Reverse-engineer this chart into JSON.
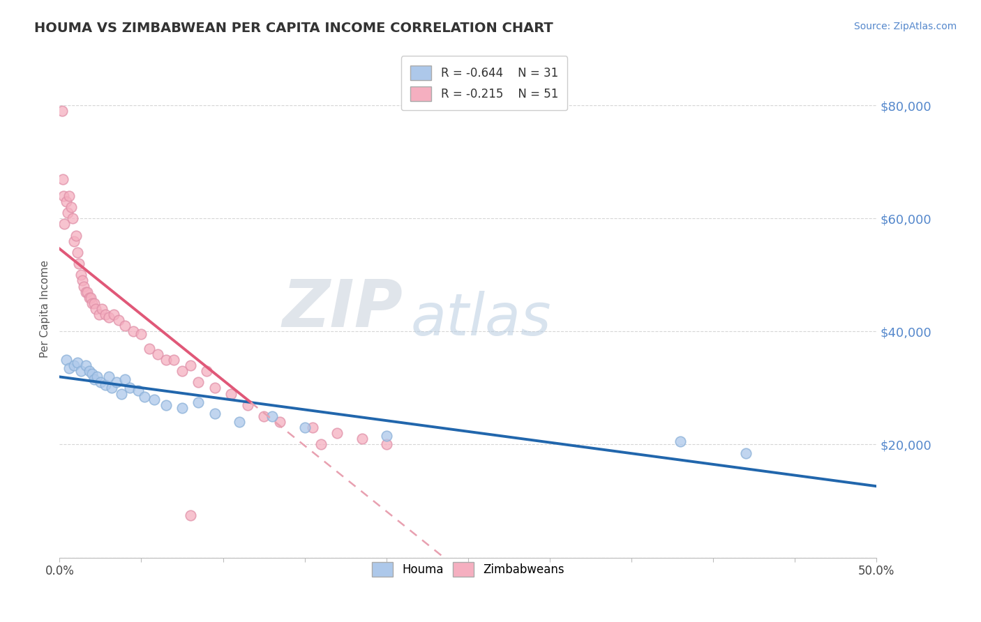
{
  "title": "HOUMA VS ZIMBABWEAN PER CAPITA INCOME CORRELATION CHART",
  "source_text": "Source: ZipAtlas.com",
  "ylabel": "Per Capita Income",
  "xlim": [
    0.0,
    50.0
  ],
  "ylim": [
    0,
    88000
  ],
  "yticks": [
    0,
    20000,
    40000,
    60000,
    80000
  ],
  "ytick_labels": [
    "",
    "$20,000",
    "$40,000",
    "$60,000",
    "$80,000"
  ],
  "legend_r1": "R = -0.644",
  "legend_n1": "N = 31",
  "legend_r2": "R = -0.215",
  "legend_n2": "N = 51",
  "houma_color": "#adc8ea",
  "houma_edge": "#8ab0d8",
  "zimbabwean_color": "#f5afc0",
  "zimbabwean_edge": "#e090a8",
  "trend_blue": "#2166ac",
  "trend_pink": "#e05878",
  "trend_pink_dash": "#e8a0b0",
  "watermark_zip": "#d0d8e8",
  "watermark_atlas": "#b8cce4",
  "houma_x": [
    0.4,
    0.6,
    0.9,
    1.1,
    1.3,
    1.6,
    1.8,
    2.0,
    2.1,
    2.3,
    2.5,
    2.8,
    3.0,
    3.2,
    3.5,
    3.8,
    4.0,
    4.3,
    4.8,
    5.2,
    5.8,
    6.5,
    7.5,
    8.5,
    9.5,
    11.0,
    13.0,
    15.0,
    20.0,
    38.0,
    42.0
  ],
  "houma_y": [
    35000,
    33500,
    34000,
    34500,
    33000,
    34000,
    33000,
    32500,
    31500,
    32000,
    31000,
    30500,
    32000,
    30000,
    31000,
    29000,
    31500,
    30000,
    29500,
    28500,
    28000,
    27000,
    26500,
    27500,
    25500,
    24000,
    25000,
    23000,
    21500,
    20500,
    18500
  ],
  "zimbabwean_x": [
    0.15,
    0.2,
    0.25,
    0.3,
    0.4,
    0.5,
    0.6,
    0.7,
    0.8,
    0.9,
    1.0,
    1.1,
    1.2,
    1.3,
    1.4,
    1.5,
    1.6,
    1.7,
    1.8,
    1.9,
    2.0,
    2.1,
    2.2,
    2.4,
    2.6,
    2.8,
    3.0,
    3.3,
    3.6,
    4.0,
    4.5,
    5.0,
    5.5,
    6.0,
    6.5,
    7.0,
    7.5,
    8.0,
    8.5,
    9.0,
    9.5,
    10.5,
    11.5,
    12.5,
    13.5,
    15.5,
    16.0,
    17.0,
    18.5,
    20.0,
    8.0
  ],
  "zimbabwean_y": [
    79000,
    67000,
    64000,
    59000,
    63000,
    61000,
    64000,
    62000,
    60000,
    56000,
    57000,
    54000,
    52000,
    50000,
    49000,
    48000,
    47000,
    47000,
    46000,
    46000,
    45000,
    45000,
    44000,
    43000,
    44000,
    43000,
    42500,
    43000,
    42000,
    41000,
    40000,
    39500,
    37000,
    36000,
    35000,
    35000,
    33000,
    34000,
    31000,
    33000,
    30000,
    29000,
    27000,
    25000,
    24000,
    23000,
    20000,
    22000,
    21000,
    20000,
    7500
  ]
}
